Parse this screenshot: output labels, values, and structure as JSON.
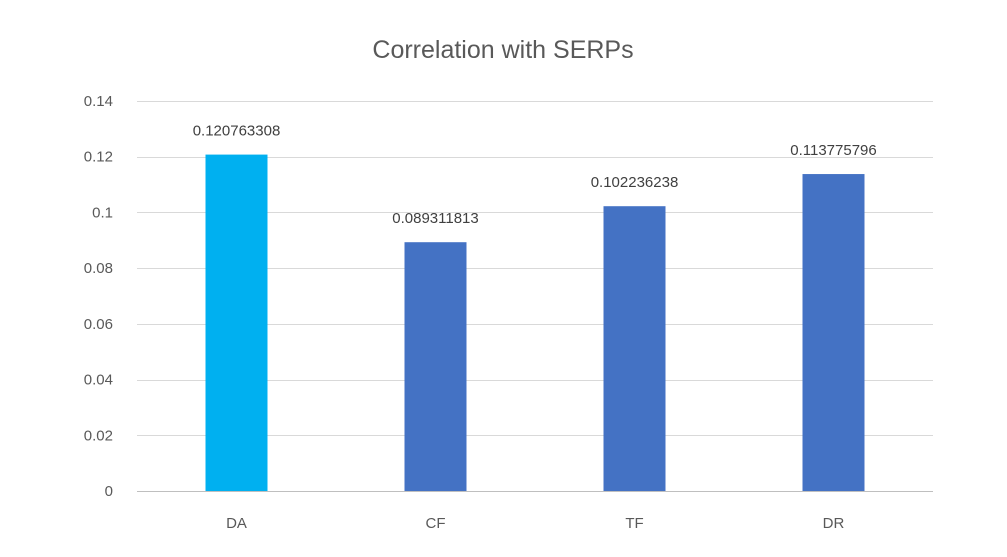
{
  "chart_data": {
    "type": "bar",
    "title": "Correlation with SERPs",
    "xlabel": "",
    "ylabel": "",
    "categories": [
      "DA",
      "CF",
      "TF",
      "DR"
    ],
    "values": [
      0.120763308,
      0.089311813,
      0.102236238,
      0.113775796
    ],
    "data_labels": [
      "0.120763308",
      "0.089311813",
      "0.102236238",
      "0.113775796"
    ],
    "bar_colors": [
      "#00b0f0",
      "#4472c4",
      "#4472c4",
      "#4472c4"
    ],
    "ylim": [
      0,
      0.14
    ],
    "yticks": [
      0,
      0.02,
      0.04,
      0.06,
      0.08,
      0.1,
      0.12,
      0.14
    ],
    "ytick_labels": [
      "0",
      "0.02",
      "0.04",
      "0.06",
      "0.08",
      "0.1",
      "0.12",
      "0.14"
    ],
    "grid": true,
    "legend": "none"
  }
}
